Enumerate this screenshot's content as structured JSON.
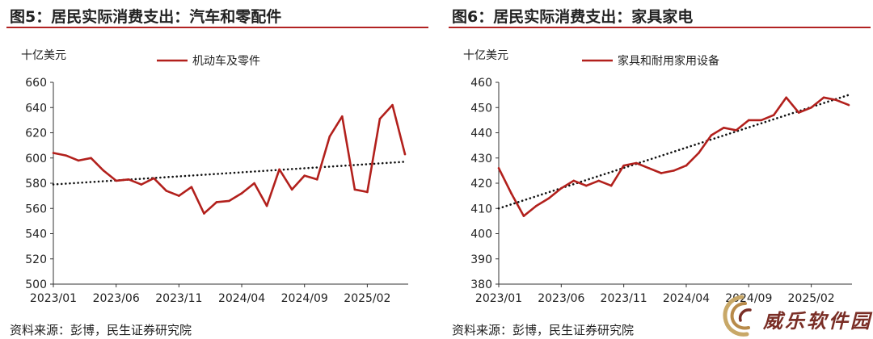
{
  "charts": [
    {
      "title": "图5：居民实际消费支出：汽车和零配件",
      "unit": "十亿美元",
      "source": "资料来源：彭博，民生证券研究院"
    },
    {
      "title": "图6：居民实际消费支出：家具家电",
      "unit": "十亿美元",
      "source": "资料来源：彭博，民生证券研究院"
    }
  ],
  "logo": {
    "text": "威乐软件园"
  },
  "colors": {
    "series": "#b2201c",
    "trend": "#111111",
    "title_rule": "#b22222"
  },
  "chart_data": [
    {
      "type": "line",
      "title": "图5：居民实际消费支出：汽车和零配件",
      "ylabel": "十亿美元",
      "ylim": [
        500,
        660
      ],
      "yticks": [
        500,
        520,
        540,
        560,
        580,
        600,
        620,
        640,
        660
      ],
      "x": [
        "2023/01",
        "2023/02",
        "2023/03",
        "2023/04",
        "2023/05",
        "2023/06",
        "2023/07",
        "2023/08",
        "2023/09",
        "2023/10",
        "2023/11",
        "2023/12",
        "2024/01",
        "2024/02",
        "2024/03",
        "2024/04",
        "2024/05",
        "2024/06",
        "2024/07",
        "2024/08",
        "2024/09",
        "2024/10",
        "2024/11",
        "2024/12",
        "2025/01",
        "2025/02",
        "2025/03",
        "2025/04",
        "2025/05"
      ],
      "xticks": [
        "2023/01",
        "2023/06",
        "2023/11",
        "2024/04",
        "2024/09",
        "2025/02"
      ],
      "series": [
        {
          "name": "机动车及零件",
          "values": [
            604,
            602,
            598,
            600,
            590,
            582,
            583,
            579,
            584,
            574,
            570,
            577,
            556,
            565,
            566,
            572,
            580,
            562,
            591,
            575,
            586,
            583,
            617,
            633,
            575,
            573,
            631,
            642,
            603
          ]
        }
      ],
      "trendline": {
        "start": 579,
        "end": 597,
        "style": "dotted"
      },
      "legend": "top-center",
      "grid": false
    },
    {
      "type": "line",
      "title": "图6：居民实际消费支出：家具家电",
      "ylabel": "十亿美元",
      "ylim": [
        380,
        460
      ],
      "yticks": [
        380,
        390,
        400,
        410,
        420,
        430,
        440,
        450,
        460
      ],
      "x": [
        "2023/01",
        "2023/02",
        "2023/03",
        "2023/04",
        "2023/05",
        "2023/06",
        "2023/07",
        "2023/08",
        "2023/09",
        "2023/10",
        "2023/11",
        "2023/12",
        "2024/01",
        "2024/02",
        "2024/03",
        "2024/04",
        "2024/05",
        "2024/06",
        "2024/07",
        "2024/08",
        "2024/09",
        "2024/10",
        "2024/11",
        "2024/12",
        "2025/01",
        "2025/02",
        "2025/03",
        "2025/04",
        "2025/05"
      ],
      "xticks": [
        "2023/01",
        "2023/06",
        "2023/11",
        "2024/04",
        "2024/09",
        "2025/02"
      ],
      "series": [
        {
          "name": "家具和耐用家用设备",
          "values": [
            426,
            416,
            407,
            411,
            414,
            418,
            421,
            419,
            421,
            419,
            427,
            428,
            426,
            424,
            425,
            427,
            432,
            439,
            442,
            441,
            445,
            445,
            447,
            454,
            448,
            450,
            454,
            453,
            451
          ]
        }
      ],
      "trendline": {
        "start": 410,
        "end": 455,
        "style": "dotted"
      },
      "legend": "top-center",
      "grid": false
    }
  ]
}
